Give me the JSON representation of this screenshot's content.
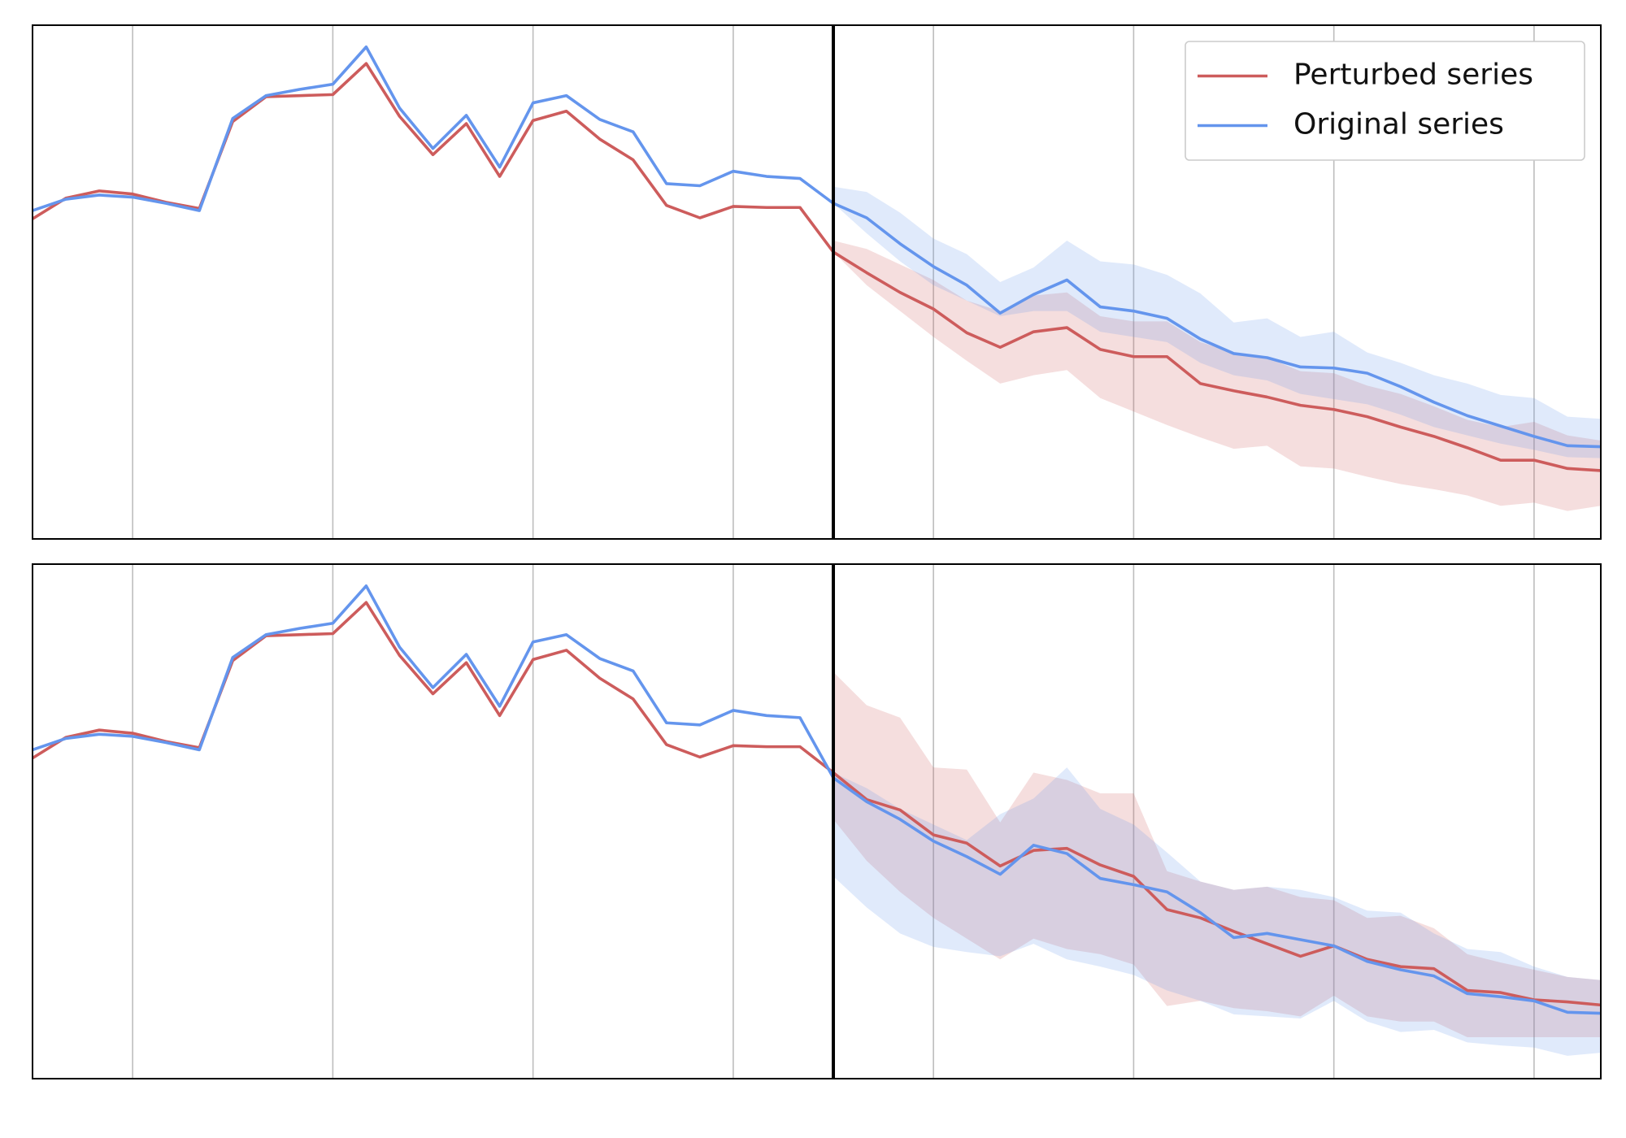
{
  "chart_data": [
    {
      "type": "line",
      "x": [
        0,
        1,
        2,
        3,
        4,
        5,
        6,
        7,
        8,
        9,
        10,
        11,
        12,
        13,
        14,
        15,
        16,
        17,
        18,
        19,
        20,
        21,
        22,
        23,
        24,
        25,
        26,
        27,
        28,
        29,
        30,
        31,
        32,
        33,
        34,
        35,
        36,
        37,
        38,
        39,
        40,
        41,
        42,
        43,
        44,
        45,
        46,
        47
      ],
      "xlim": [
        0,
        47
      ],
      "xticks": [
        3,
        9,
        15,
        21,
        27,
        33,
        39,
        45
      ],
      "grid": true,
      "ylim": [
        0,
        496
      ],
      "vline": 24,
      "legend": "upper right",
      "series": [
        {
          "name": "Perturbed series",
          "color": "#cd5c5c",
          "values": [
            309,
            329,
            336,
            333,
            325,
            319,
            403,
            427,
            428,
            429,
            459,
            408,
            371,
            401,
            350,
            404,
            413,
            386,
            366,
            322,
            310,
            321,
            320,
            320,
            277,
            257,
            238,
            222,
            199,
            185,
            200,
            204,
            183,
            176,
            176,
            150,
            143,
            137,
            129,
            125,
            118,
            108,
            99,
            88,
            76,
            76,
            68,
            66
          ],
          "upper": [
            null,
            null,
            null,
            null,
            null,
            null,
            null,
            null,
            null,
            null,
            null,
            null,
            null,
            null,
            null,
            null,
            null,
            null,
            null,
            null,
            null,
            null,
            null,
            null,
            288,
            280,
            265,
            250,
            230,
            220,
            235,
            238,
            215,
            210,
            210,
            190,
            180,
            175,
            162,
            160,
            148,
            140,
            128,
            115,
            108,
            113,
            100,
            95
          ],
          "lower": [
            null,
            null,
            null,
            null,
            null,
            null,
            null,
            null,
            null,
            null,
            null,
            null,
            null,
            null,
            null,
            null,
            null,
            null,
            null,
            null,
            null,
            null,
            null,
            null,
            277,
            245,
            220,
            195,
            172,
            150,
            158,
            163,
            136,
            123,
            110,
            98,
            87,
            90,
            70,
            68,
            60,
            53,
            48,
            42,
            32,
            35,
            27,
            32
          ]
        },
        {
          "name": "Original series",
          "color": "#6495ed",
          "values": [
            317,
            328,
            332,
            330,
            324,
            317,
            406,
            428,
            434,
            439,
            475,
            416,
            377,
            409,
            359,
            421,
            428,
            405,
            393,
            343,
            341,
            355,
            350,
            348,
            324,
            310,
            285,
            263,
            245,
            218,
            236,
            250,
            224,
            220,
            213,
            193,
            179,
            175,
            166,
            165,
            160,
            147,
            132,
            119,
            109,
            99,
            90,
            89
          ],
          "upper": [
            null,
            null,
            null,
            null,
            null,
            null,
            null,
            null,
            null,
            null,
            null,
            null,
            null,
            null,
            null,
            null,
            null,
            null,
            null,
            null,
            null,
            null,
            null,
            null,
            340,
            335,
            315,
            290,
            275,
            248,
            262,
            288,
            268,
            265,
            255,
            237,
            209,
            213,
            195,
            200,
            180,
            170,
            158,
            150,
            139,
            136,
            118,
            116
          ],
          "lower": [
            null,
            null,
            null,
            null,
            null,
            null,
            null,
            null,
            null,
            null,
            null,
            null,
            null,
            null,
            null,
            null,
            null,
            null,
            null,
            null,
            null,
            null,
            null,
            null,
            324,
            295,
            268,
            245,
            230,
            215,
            220,
            220,
            200,
            195,
            190,
            170,
            158,
            153,
            140,
            135,
            130,
            120,
            108,
            100,
            92,
            86,
            79,
            78
          ]
        }
      ]
    },
    {
      "type": "line",
      "x": [
        0,
        1,
        2,
        3,
        4,
        5,
        6,
        7,
        8,
        9,
        10,
        11,
        12,
        13,
        14,
        15,
        16,
        17,
        18,
        19,
        20,
        21,
        22,
        23,
        24,
        25,
        26,
        27,
        28,
        29,
        30,
        31,
        32,
        33,
        34,
        35,
        36,
        37,
        38,
        39,
        40,
        41,
        42,
        43,
        44,
        45,
        46,
        47
      ],
      "xlim": [
        0,
        47
      ],
      "xticks": [
        3,
        9,
        15,
        21,
        27,
        33,
        39,
        45
      ],
      "grid": true,
      "ylim": [
        0,
        496
      ],
      "vline": 24,
      "series": [
        {
          "color": "#cd5c5c",
          "values": [
            309,
            329,
            336,
            333,
            325,
            319,
            403,
            427,
            428,
            429,
            459,
            408,
            371,
            401,
            350,
            404,
            413,
            386,
            366,
            322,
            310,
            321,
            320,
            320,
            295,
            269,
            259,
            235,
            227,
            205,
            220,
            222,
            206,
            195,
            163,
            155,
            142,
            130,
            118,
            128,
            115,
            108,
            106,
            85,
            83,
            76,
            74,
            71
          ],
          "upper": [
            null,
            null,
            null,
            null,
            null,
            null,
            null,
            null,
            null,
            null,
            null,
            null,
            null,
            null,
            null,
            null,
            null,
            null,
            null,
            null,
            null,
            null,
            null,
            null,
            392,
            360,
            348,
            300,
            298,
            247,
            295,
            288,
            275,
            275,
            200,
            190,
            182,
            185,
            175,
            172,
            155,
            157,
            145,
            120,
            112,
            105,
            98,
            95
          ],
          "lower": [
            null,
            null,
            null,
            null,
            null,
            null,
            null,
            null,
            null,
            null,
            null,
            null,
            null,
            null,
            null,
            null,
            null,
            null,
            null,
            null,
            null,
            null,
            null,
            null,
            250,
            210,
            180,
            155,
            135,
            115,
            135,
            125,
            120,
            110,
            70,
            75,
            68,
            65,
            60,
            80,
            60,
            55,
            55,
            40,
            40,
            40,
            40,
            40
          ]
        },
        {
          "color": "#6495ed",
          "values": [
            317,
            328,
            332,
            330,
            324,
            317,
            406,
            428,
            434,
            439,
            475,
            416,
            377,
            409,
            359,
            421,
            428,
            405,
            393,
            343,
            341,
            355,
            350,
            348,
            290,
            267,
            250,
            229,
            214,
            197,
            225,
            217,
            193,
            187,
            180,
            160,
            136,
            140,
            134,
            128,
            113,
            105,
            99,
            82,
            79,
            75,
            64,
            63
          ],
          "upper": [
            null,
            null,
            null,
            null,
            null,
            null,
            null,
            null,
            null,
            null,
            null,
            null,
            null,
            null,
            null,
            null,
            null,
            null,
            null,
            null,
            null,
            null,
            null,
            null,
            295,
            280,
            260,
            245,
            230,
            255,
            270,
            300,
            260,
            245,
            218,
            190,
            182,
            185,
            182,
            175,
            162,
            160,
            140,
            125,
            122,
            108,
            98,
            95
          ],
          "lower": [
            null,
            null,
            null,
            null,
            null,
            null,
            null,
            null,
            null,
            null,
            null,
            null,
            null,
            null,
            null,
            null,
            null,
            null,
            null,
            null,
            null,
            null,
            null,
            null,
            195,
            165,
            140,
            127,
            122,
            118,
            130,
            115,
            108,
            100,
            85,
            75,
            62,
            60,
            58,
            75,
            55,
            45,
            47,
            35,
            32,
            30,
            22,
            25
          ]
        }
      ]
    }
  ]
}
